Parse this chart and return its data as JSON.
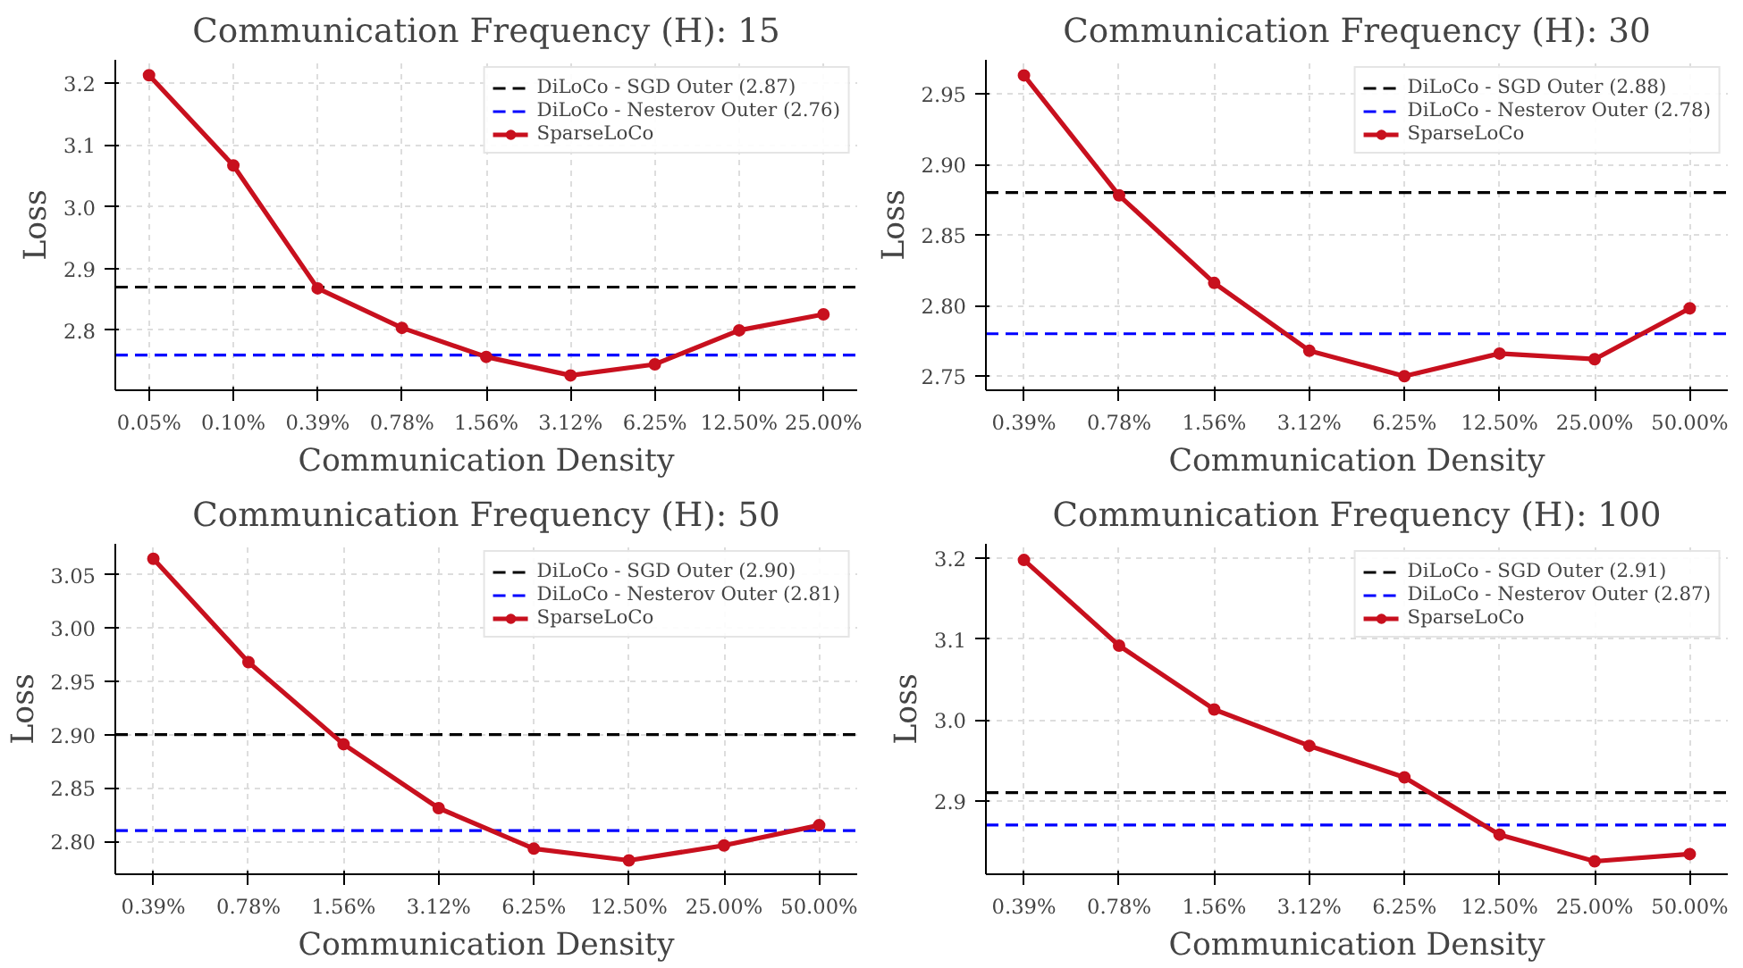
{
  "chart_data": [
    {
      "type": "line",
      "title": "Communication Frequency (H): 15",
      "xlabel": "Communication Density",
      "ylabel": "Loss",
      "categories": [
        "0.05%",
        "0.10%",
        "0.39%",
        "0.78%",
        "1.56%",
        "3.12%",
        "6.25%",
        "12.50%",
        "25.00%"
      ],
      "series": [
        {
          "name": "SparseLoCo",
          "color": "#c8101e",
          "values": [
            3.213,
            3.067,
            2.868,
            2.804,
            2.757,
            2.727,
            2.745,
            2.8,
            2.826
          ]
        }
      ],
      "ref_lines": [
        {
          "axis": "y",
          "value": 2.87,
          "label": "DiLoCo - SGD Outer (2.87)",
          "color": "#000000",
          "line_style": "dashed"
        },
        {
          "axis": "y",
          "value": 2.76,
          "label": "DiLoCo - Nesterov Outer (2.76)",
          "color": "#0000ff",
          "line_style": "dashed"
        }
      ],
      "ylim": [
        2.703,
        3.238
      ],
      "yticks": [
        2.8,
        2.9,
        {
          "value": 3.0,
          "label": "3.0"
        },
        3.1,
        3.2
      ],
      "grid": true,
      "legend": "top right",
      "marker": "circle",
      "line_style": "solid"
    },
    {
      "type": "line",
      "title": "Communication Frequency (H): 30",
      "xlabel": "Communication Density",
      "ylabel": "Loss",
      "categories": [
        "0.39%",
        "0.78%",
        "1.56%",
        "3.12%",
        "6.25%",
        "12.50%",
        "25.00%",
        "50.00%"
      ],
      "series": [
        {
          "name": "SparseLoCo",
          "color": "#c8101e",
          "values": [
            2.963,
            2.878,
            2.816,
            2.768,
            2.75,
            2.766,
            2.762,
            2.798
          ]
        }
      ],
      "ref_lines": [
        {
          "axis": "y",
          "value": 2.88,
          "label": "DiLoCo - SGD Outer (2.88)",
          "color": "#000000",
          "line_style": "dashed"
        },
        {
          "axis": "y",
          "value": 2.78,
          "label": "DiLoCo - Nesterov Outer (2.78)",
          "color": "#0000ff",
          "line_style": "dashed"
        }
      ],
      "ylim": [
        2.74,
        2.974
      ],
      "yticks": [
        2.75,
        {
          "value": 2.8,
          "label": "2.80"
        },
        2.85,
        {
          "value": 2.9,
          "label": "2.90"
        },
        2.95
      ],
      "grid": true,
      "legend": "top right",
      "marker": "circle",
      "line_style": "solid"
    },
    {
      "type": "line",
      "title": "Communication Frequency (H): 50",
      "xlabel": "Communication Density",
      "ylabel": "Loss",
      "categories": [
        "0.39%",
        "0.78%",
        "1.56%",
        "3.12%",
        "6.25%",
        "12.50%",
        "25.00%",
        "50.00%"
      ],
      "series": [
        {
          "name": "SparseLoCo",
          "color": "#c8101e",
          "values": [
            3.065,
            2.968,
            2.891,
            2.831,
            2.793,
            2.782,
            2.796,
            2.815
          ]
        }
      ],
      "ref_lines": [
        {
          "axis": "y",
          "value": 2.9,
          "label": "DiLoCo - SGD Outer (2.90)",
          "color": "#000000",
          "line_style": "dashed"
        },
        {
          "axis": "y",
          "value": 2.81,
          "label": "DiLoCo - Nesterov Outer (2.81)",
          "color": "#0000ff",
          "line_style": "dashed"
        }
      ],
      "ylim": [
        2.769,
        3.079
      ],
      "yticks": [
        {
          "value": 2.8,
          "label": "2.80"
        },
        2.85,
        {
          "value": 2.9,
          "label": "2.90"
        },
        2.95,
        {
          "value": 3.0,
          "label": "3.00"
        },
        3.05
      ],
      "grid": true,
      "legend": "top right",
      "marker": "circle",
      "line_style": "solid"
    },
    {
      "type": "line",
      "title": "Communication Frequency (H): 100",
      "xlabel": "Communication Density",
      "ylabel": "Loss",
      "categories": [
        "0.39%",
        "0.78%",
        "1.56%",
        "3.12%",
        "6.25%",
        "12.50%",
        "25.00%",
        "50.00%"
      ],
      "series": [
        {
          "name": "SparseLoCo",
          "color": "#c8101e",
          "values": [
            3.198,
            3.092,
            3.013,
            2.968,
            2.929,
            2.858,
            2.825,
            2.834
          ]
        }
      ],
      "ref_lines": [
        {
          "axis": "y",
          "value": 2.91,
          "label": "DiLoCo - SGD Outer (2.91)",
          "color": "#000000",
          "line_style": "dashed"
        },
        {
          "axis": "y",
          "value": 2.87,
          "label": "DiLoCo - Nesterov Outer (2.87)",
          "color": "#0000ff",
          "line_style": "dashed"
        }
      ],
      "ylim": [
        2.809,
        3.218
      ],
      "yticks": [
        2.9,
        {
          "value": 3.0,
          "label": "3.0"
        },
        3.1,
        3.2
      ],
      "grid": true,
      "legend": "top right",
      "marker": "circle",
      "line_style": "solid"
    }
  ]
}
